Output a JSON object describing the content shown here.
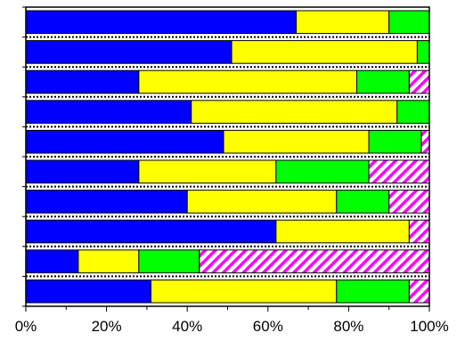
{
  "chart_data": {
    "type": "bar",
    "orientation": "horizontal",
    "stacked": true,
    "normalized": true,
    "title": "",
    "xlabel": "",
    "ylabel": "",
    "xlim": [
      0,
      100
    ],
    "x_ticks": [
      "0%",
      "20%",
      "40%",
      "60%",
      "80%",
      "100%"
    ],
    "x_tick_values": [
      0,
      20,
      40,
      60,
      80,
      100
    ],
    "grid": false,
    "legend": "none",
    "series": [
      {
        "color": "#0000ff",
        "pattern": "solid",
        "values": [
          67,
          51,
          28,
          41,
          49,
          28,
          40,
          62,
          13,
          31
        ]
      },
      {
        "color": "#ffff00",
        "pattern": "solid",
        "values": [
          23,
          46,
          54,
          51,
          36,
          34,
          37,
          33,
          15,
          46
        ]
      },
      {
        "color": "#00ff00",
        "pattern": "solid",
        "values": [
          10,
          3,
          13,
          8,
          13,
          23,
          13,
          0,
          15,
          18
        ]
      },
      {
        "color": "#ff00ff",
        "pattern": "diagonal-hatch",
        "values": [
          0,
          0,
          5,
          0,
          2,
          15,
          10,
          5,
          57,
          5
        ]
      }
    ]
  }
}
